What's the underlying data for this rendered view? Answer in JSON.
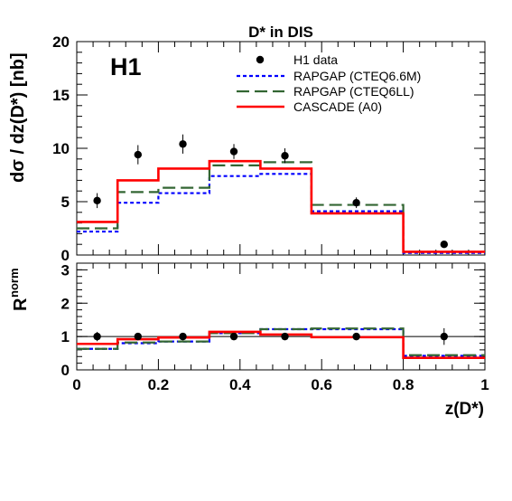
{
  "chart_data": [
    {
      "type": "line",
      "title": "D* in DIS",
      "ylabel": "dσ / dz(D*) [nb]",
      "annotation": "H1",
      "ylim": [
        0,
        20
      ],
      "yticks": [
        "0",
        "5",
        "10",
        "15",
        "20"
      ],
      "bin_edges": [
        0,
        0.1,
        0.2,
        0.325,
        0.45,
        0.575,
        0.8,
        1.0
      ],
      "data": {
        "name": "H1 data",
        "x": [
          0.05,
          0.15,
          0.26,
          0.385,
          0.51,
          0.685,
          0.9
        ],
        "y": [
          5.1,
          9.4,
          10.4,
          9.7,
          9.3,
          4.9,
          1.0
        ],
        "yerr": [
          0.7,
          0.9,
          0.9,
          0.7,
          0.7,
          0.5,
          0.15
        ]
      },
      "series": [
        {
          "name": "RAPGAP (CTEQ6.6M)",
          "color": "#0000ff",
          "style": "dotted",
          "values": [
            2.2,
            4.9,
            5.8,
            7.4,
            7.6,
            4.1,
            0.2
          ]
        },
        {
          "name": "RAPGAP (CTEQ6LL)",
          "color": "#336633",
          "style": "dashed",
          "values": [
            2.5,
            5.9,
            6.3,
            8.4,
            8.7,
            4.7,
            0.3
          ]
        },
        {
          "name": "CASCADE (A0)",
          "color": "#ff0000",
          "style": "solid",
          "values": [
            3.1,
            7.0,
            8.1,
            8.8,
            8.1,
            3.9,
            0.3
          ]
        }
      ]
    },
    {
      "type": "line",
      "ylabel": "R",
      "ylabel_sup": "norm",
      "xlabel": "z(D*)",
      "xlim": [
        0,
        1
      ],
      "ylim": [
        0,
        3.2
      ],
      "yticks": [
        "0",
        "1",
        "2",
        "3"
      ],
      "xticks": [
        "0",
        "0.2",
        "0.4",
        "0.6",
        "0.8",
        "1"
      ],
      "bin_edges": [
        0,
        0.1,
        0.2,
        0.325,
        0.45,
        0.575,
        0.8,
        1.0
      ],
      "data": {
        "x": [
          0.05,
          0.15,
          0.26,
          0.385,
          0.51,
          0.685,
          0.9
        ],
        "y": [
          1.0,
          1.0,
          1.0,
          1.0,
          1.0,
          1.0,
          1.0
        ],
        "yerr": [
          0.14,
          0.1,
          0.09,
          0.07,
          0.08,
          0.1,
          0.25
        ]
      },
      "series": [
        {
          "name": "RAPGAP (CTEQ6.6M)",
          "color": "#0000ff",
          "style": "dotted",
          "values": [
            0.63,
            0.8,
            0.85,
            1.1,
            1.22,
            1.22,
            0.42
          ]
        },
        {
          "name": "RAPGAP (CTEQ6LL)",
          "color": "#336633",
          "style": "dashed",
          "values": [
            0.63,
            0.82,
            0.85,
            1.1,
            1.22,
            1.24,
            0.44
          ]
        },
        {
          "name": "CASCADE (A0)",
          "color": "#ff0000",
          "style": "solid",
          "values": [
            0.78,
            0.92,
            0.97,
            1.14,
            1.06,
            0.98,
            0.36
          ]
        }
      ]
    }
  ]
}
